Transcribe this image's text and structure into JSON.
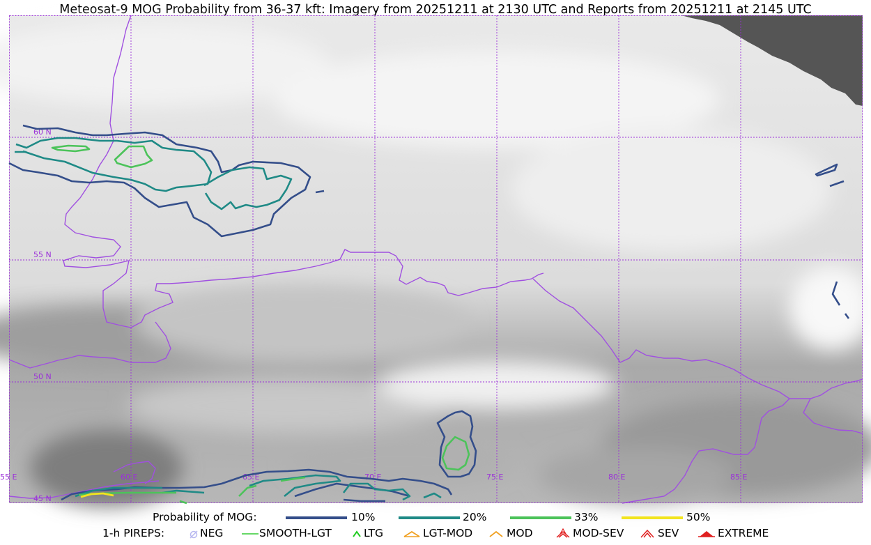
{
  "title": "Meteosat-9 MOG Probability from 36-37 kft: Imagery from 20251211 at 2130 UTC and Reports from 20251211 at 2145 UTC",
  "map": {
    "lat_labels": [
      "60 N",
      "55 N",
      "50 N",
      "45 N"
    ],
    "lon_labels": [
      "55 E",
      "60 E",
      "65 E",
      "70 E",
      "75 E",
      "80 E",
      "85 E"
    ],
    "colors": {
      "grid": "#9b30d9",
      "border": "#a050e0",
      "no_data": "#555555"
    }
  },
  "legend": {
    "probability_label": "Probability of MOG:",
    "probability_items": [
      {
        "label": "10%",
        "color": "#344e8a"
      },
      {
        "label": "20%",
        "color": "#1f8a86"
      },
      {
        "label": "33%",
        "color": "#4cc35a"
      },
      {
        "label": "50%",
        "color": "#f2e41e"
      }
    ],
    "pirep_label": "1-h PIREPS:",
    "pirep_items": [
      {
        "label": "NEG",
        "icon": "neg-icon",
        "color": "#b8b8f0"
      },
      {
        "label": "SMOOTH-LGT",
        "icon": "smooth-lgt-icon",
        "color": "#33cc33"
      },
      {
        "label": "LTG",
        "icon": "ltg-icon",
        "color": "#22cc22"
      },
      {
        "label": "LGT-MOD",
        "icon": "lgt-mod-icon",
        "color": "#f0a020"
      },
      {
        "label": "MOD",
        "icon": "mod-icon",
        "color": "#f0a020"
      },
      {
        "label": "MOD-SEV",
        "icon": "mod-sev-icon",
        "color": "#e02020"
      },
      {
        "label": "SEV",
        "icon": "sev-icon",
        "color": "#e02020"
      },
      {
        "label": "EXTREME",
        "icon": "extreme-icon",
        "color": "#e02020"
      }
    ]
  }
}
